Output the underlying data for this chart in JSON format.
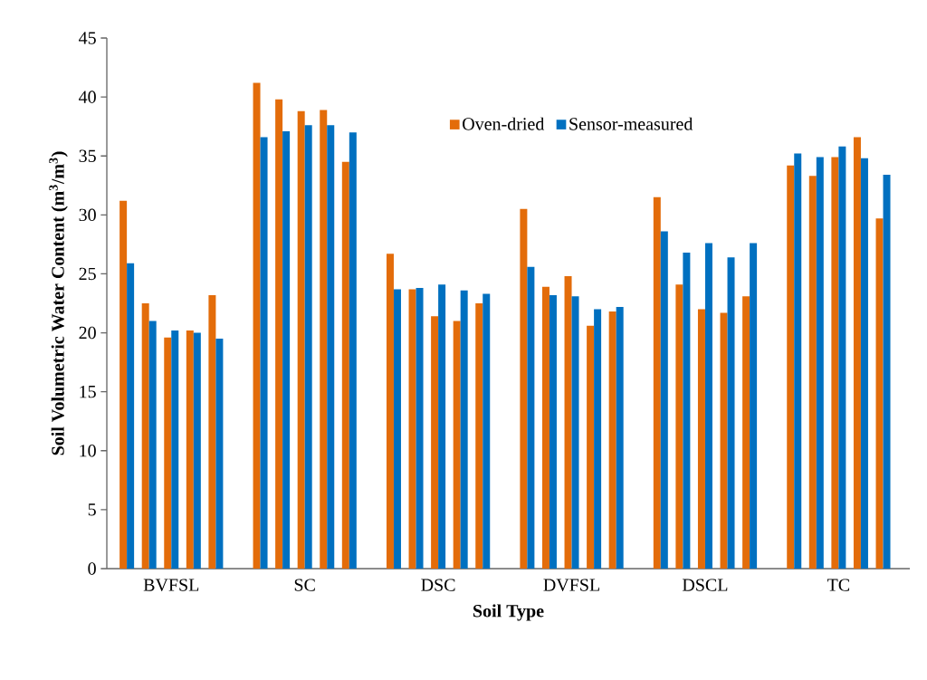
{
  "chart_data": {
    "type": "bar",
    "xlabel": "Soil Type",
    "ylabel": "Soil Volumetric Water Content (m$^{3}$/m$^{3}$)",
    "categories": [
      null,
      null,
      "BVFSL",
      null,
      null,
      null,
      null,
      null,
      "SC",
      null,
      null,
      null,
      null,
      null,
      "DSC",
      null,
      null,
      null,
      null,
      null,
      "DVFSL",
      null,
      null,
      null,
      null,
      null,
      "DSCL",
      null,
      null,
      null,
      null,
      null,
      "TC",
      null,
      null
    ],
    "series": [
      {
        "name": "Oven-dried",
        "color": "#e36c0a",
        "values": [
          31.2,
          22.5,
          19.6,
          20.2,
          23.2,
          null,
          41.2,
          39.8,
          38.8,
          38.9,
          34.5,
          null,
          26.7,
          23.7,
          21.4,
          21.0,
          22.5,
          null,
          30.5,
          23.9,
          24.8,
          20.6,
          21.8,
          null,
          31.5,
          24.1,
          22.0,
          21.7,
          23.1,
          null,
          34.2,
          33.3,
          34.9,
          36.6,
          29.7
        ]
      },
      {
        "name": "Sensor-measured",
        "color": "#0070c0",
        "values": [
          25.9,
          21.0,
          20.2,
          20.0,
          19.5,
          null,
          36.6,
          37.1,
          37.6,
          37.6,
          37.0,
          null,
          23.7,
          23.8,
          24.1,
          23.6,
          23.3,
          null,
          25.6,
          23.2,
          23.1,
          22.0,
          22.2,
          null,
          28.6,
          26.8,
          27.6,
          26.4,
          27.6,
          null,
          35.2,
          34.9,
          35.8,
          34.8,
          33.4
        ]
      }
    ],
    "ylim": [
      0,
      45
    ],
    "yticks": [
      0,
      5,
      10,
      15,
      20,
      25,
      30,
      35,
      40,
      45
    ],
    "legend": "top"
  }
}
